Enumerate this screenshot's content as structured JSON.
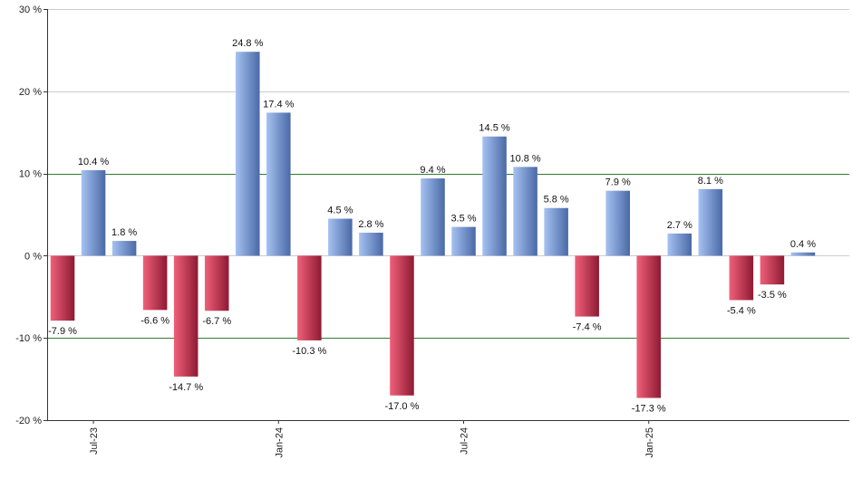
{
  "chart_data": {
    "type": "bar",
    "title": "",
    "xlabel": "",
    "ylabel": "",
    "ylim": [
      -20,
      30
    ],
    "yticks": [
      -20,
      -10,
      0,
      10,
      20,
      30
    ],
    "ytick_labels": [
      "-20 %",
      "-10 %",
      "0 %",
      "10 %",
      "20 %",
      "30 %"
    ],
    "reference_lines": [
      10,
      -10
    ],
    "categories": [
      "Jun-23",
      "Jul-23",
      "Aug-23",
      "Sep-23",
      "Oct-23",
      "Nov-23",
      "Dec-23",
      "Jan-24",
      "Feb-24",
      "Mar-24",
      "Apr-24",
      "May-24",
      "Jun-24",
      "Jul-24",
      "Aug-24",
      "Sep-24",
      "Oct-24",
      "Nov-24",
      "Dec-24",
      "Jan-25",
      "Feb-25",
      "Mar-25",
      "Apr-25",
      "May-25",
      "Jun-25",
      "Jul-25"
    ],
    "values": [
      -7.9,
      10.4,
      1.8,
      -6.6,
      -14.7,
      -6.7,
      24.8,
      17.4,
      -10.3,
      4.5,
      2.8,
      -17.0,
      9.4,
      3.5,
      14.5,
      10.8,
      5.8,
      -7.4,
      7.9,
      -17.3,
      2.7,
      8.1,
      -5.4,
      -3.5,
      0.4,
      null
    ],
    "value_labels": [
      "-7.9 %",
      "10.4 %",
      "1.8 %",
      "-6.6 %",
      "-14.7 %",
      "-6.7 %",
      "24.8 %",
      "17.4 %",
      "-10.3 %",
      "4.5 %",
      "2.8 %",
      "-17.0 %",
      "9.4 %",
      "3.5 %",
      "14.5 %",
      "10.8 %",
      "5.8 %",
      "-7.4 %",
      "7.9 %",
      "-17.3 %",
      "2.7 %",
      "8.1 %",
      "-5.4 %",
      "-3.5 %",
      "0.4 %",
      ""
    ],
    "xtick_labels": [
      {
        "category": "Jul-23",
        "label": "Jul-23"
      },
      {
        "category": "Jan-24",
        "label": "Jan-24"
      },
      {
        "category": "Jul-24",
        "label": "Jul-24"
      },
      {
        "category": "Jan-25",
        "label": "Jan-25"
      }
    ],
    "colors": {
      "positive_light": "#a6c2f2",
      "positive_dark": "#4a69a6",
      "negative_light": "#f0607a",
      "negative_dark": "#8e1a33",
      "gridline": "#cccccc",
      "reference_line": "#2e7d32",
      "axis": "#333333"
    }
  }
}
